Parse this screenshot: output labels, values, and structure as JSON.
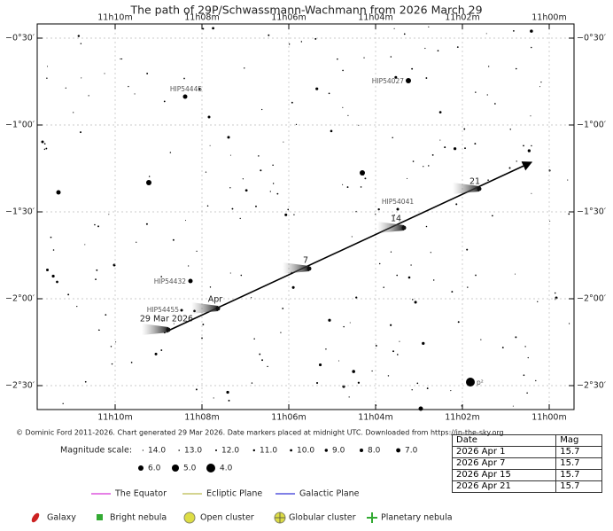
{
  "title": "The path of 29P/Schwassmann-Wachmann from 2026 March 29",
  "ra_ticks": [
    "11h10m",
    "11h08m",
    "11h06m",
    "11h04m",
    "11h02m",
    "11h00m"
  ],
  "dec_ticks": [
    "−0°30′",
    "−1°00′",
    "−1°30′",
    "−2°00′",
    "−2°30′"
  ],
  "stars": [
    "HIP54445",
    "HIP54027",
    "HIP54041",
    "HIP54432",
    "HIP54455",
    "p²"
  ],
  "path_markers": [
    "29 Mar 2026",
    "Apr",
    "7",
    "14",
    "21"
  ],
  "credit": "© Dominic Ford 2011-2026. Chart generated 29 Mar 2026. Date markers placed at midnight UTC. Downloaded from https://in-the-sky.org",
  "magnitude_scale": {
    "label": "Magnitude scale:",
    "values": [
      "14.0",
      "13.0",
      "12.0",
      "11.0",
      "10.0",
      "9.0",
      "8.0",
      "7.0",
      "6.0",
      "5.0",
      "4.0"
    ]
  },
  "lines_legend": [
    "The Equator",
    "Ecliptic Plane",
    "Galactic Plane"
  ],
  "objects_legend": [
    "Galaxy",
    "Bright nebula",
    "Open cluster",
    "Globular cluster",
    "Planetary nebula"
  ],
  "table": {
    "header": [
      "Date",
      "Mag"
    ],
    "rows": [
      [
        "2026 Apr 1",
        "15.7"
      ],
      [
        "2026 Apr 7",
        "15.7"
      ],
      [
        "2026 Apr 15",
        "15.7"
      ],
      [
        "2026 Apr 21",
        "15.7"
      ]
    ]
  }
}
